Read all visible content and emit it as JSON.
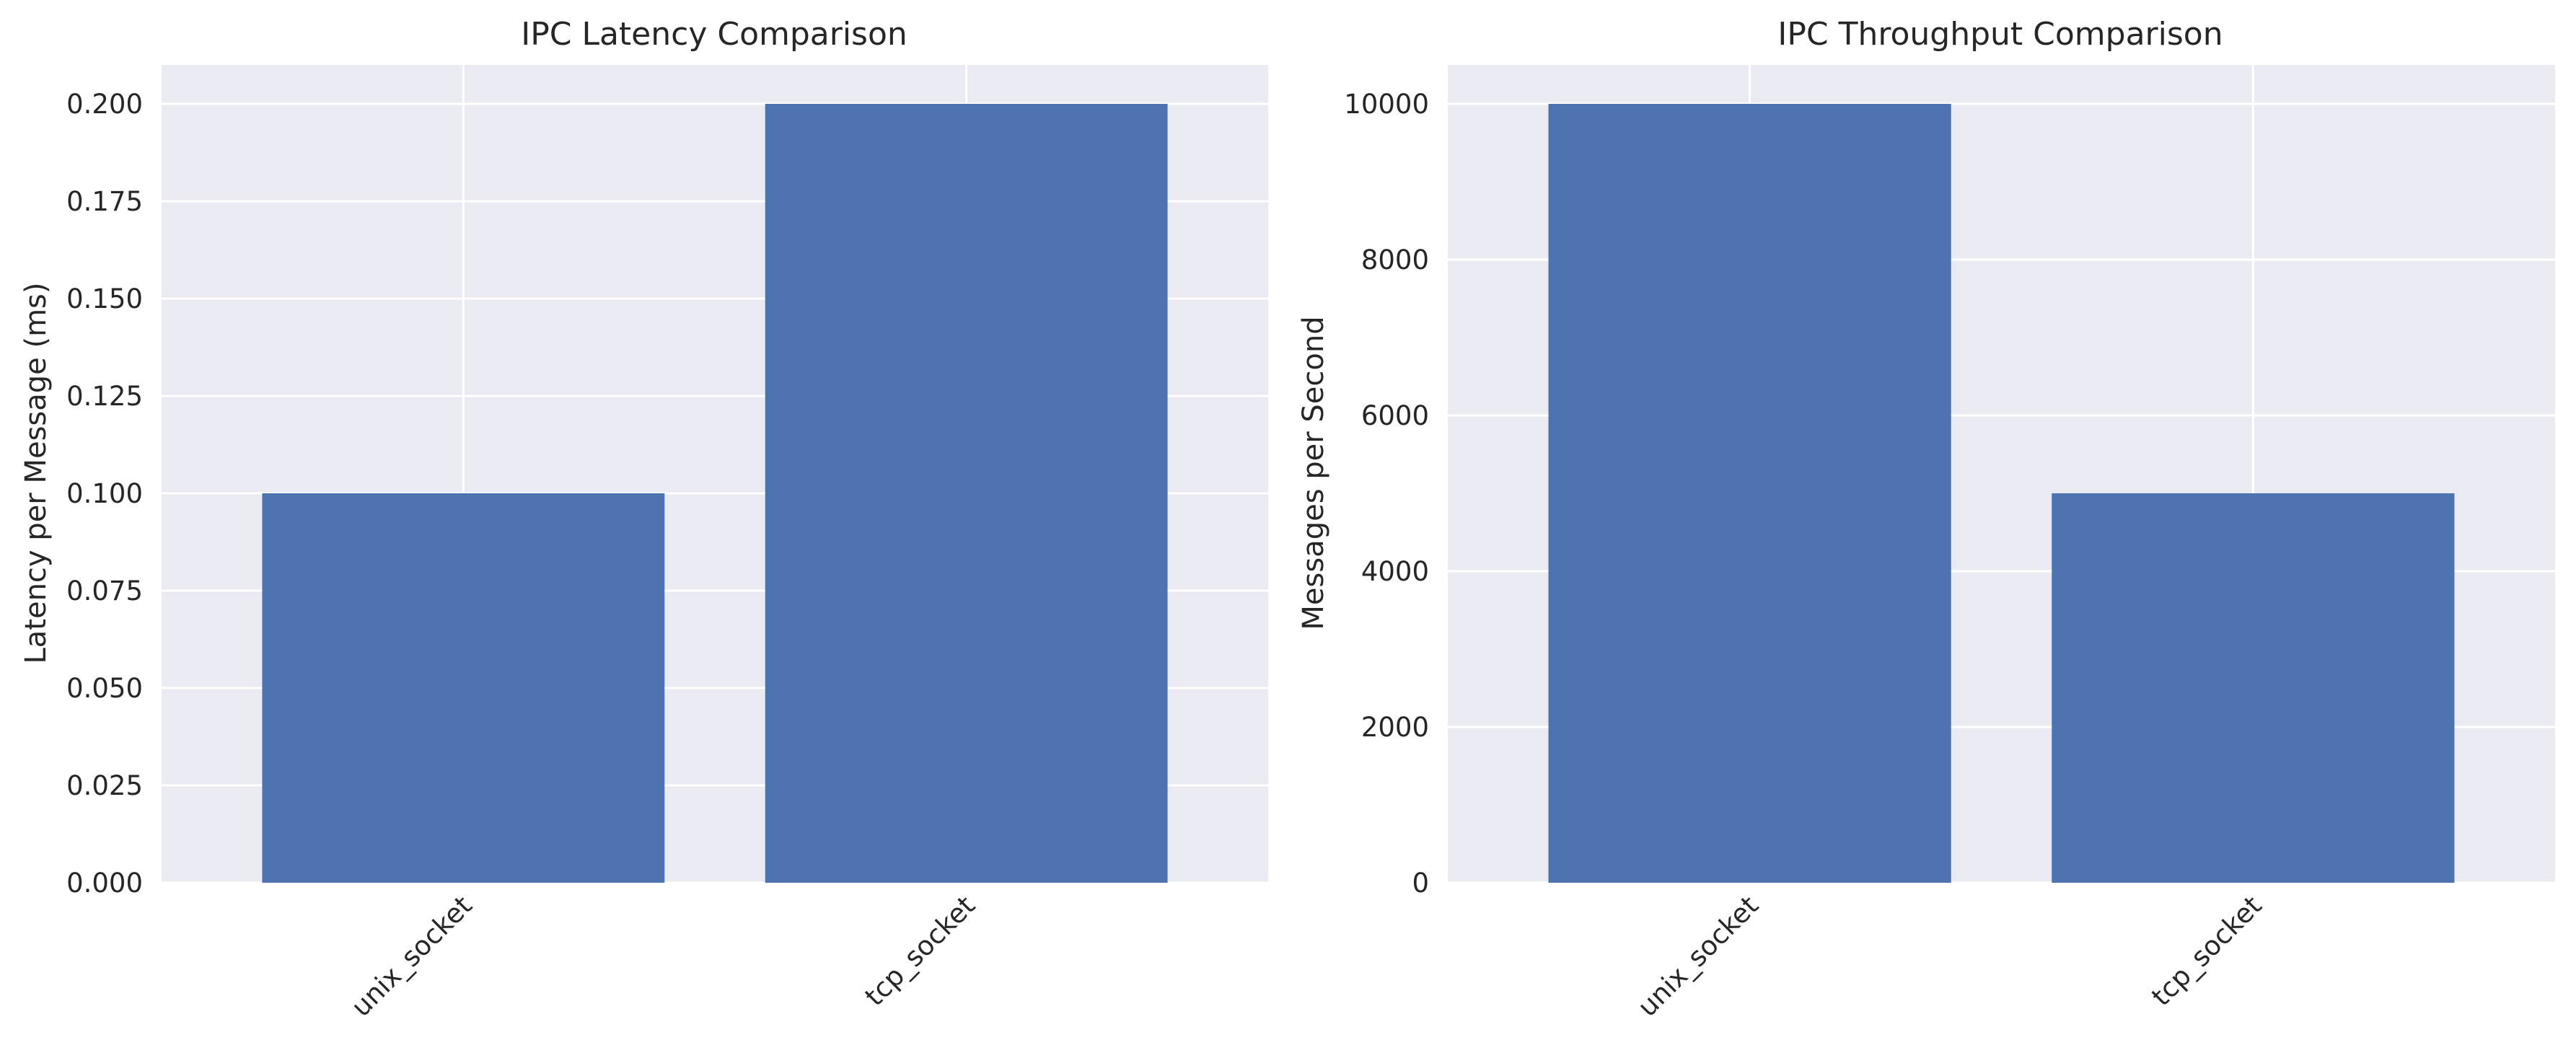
{
  "colors": {
    "bar": "#4c72b0",
    "plot_background": "#eaeaf2",
    "grid": "#ffffff",
    "text": "#262626"
  },
  "chart_data": [
    {
      "type": "bar",
      "title": "IPC Latency Comparison",
      "xlabel": "",
      "ylabel": "Latency per Message (ms)",
      "categories": [
        "unix_socket",
        "tcp_socket"
      ],
      "values": [
        0.1,
        0.2
      ],
      "ylim": [
        0,
        0.21
      ],
      "yticks": [
        "0.000",
        "0.025",
        "0.050",
        "0.075",
        "0.100",
        "0.125",
        "0.150",
        "0.175",
        "0.200"
      ],
      "grid": true,
      "legend": "none"
    },
    {
      "type": "bar",
      "title": "IPC Throughput Comparison",
      "xlabel": "",
      "ylabel": "Messages per Second",
      "categories": [
        "unix_socket",
        "tcp_socket"
      ],
      "values": [
        10000,
        5000
      ],
      "ylim": [
        0,
        10500
      ],
      "yticks": [
        "0",
        "2000",
        "4000",
        "6000",
        "8000",
        "10000"
      ],
      "grid": true,
      "legend": "none"
    }
  ]
}
